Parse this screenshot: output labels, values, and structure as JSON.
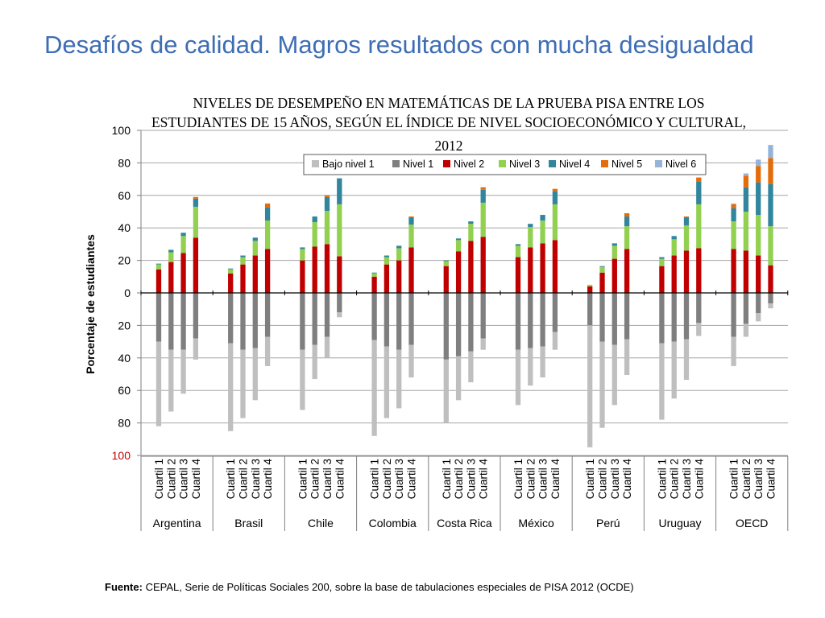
{
  "slide": {
    "title": "Desafíos de calidad. Magros resultados con mucha desigualdad",
    "footer_label": "Fuente:",
    "footer_text": "CEPAL, Serie de Políticas Sociales  200, sobre la base de tabulaciones especiales de PISA 2012 (OCDE)"
  },
  "chart_data": {
    "type": "bar",
    "stacked": true,
    "diverging": true,
    "title_lines": [
      "NIVELES DE DESEMPEÑO EN MATEMÁTICAS DE LA PRUEBA PISA ENTRE LOS",
      "ESTUDIANTES DE 15 AÑOS, SEGÚN EL ÍNDICE DE NIVEL SOCIOECONÓMICO Y CULTURAL,",
      "2012"
    ],
    "ylabel": "Porcentaje de estudiantes",
    "ylim": [
      -100,
      100
    ],
    "yticks": [
      {
        "value": 100,
        "label": "100"
      },
      {
        "value": 80,
        "label": "80"
      },
      {
        "value": 60,
        "label": "60"
      },
      {
        "value": 40,
        "label": "40"
      },
      {
        "value": 20,
        "label": "20"
      },
      {
        "value": 0,
        "label": "0"
      },
      {
        "value": -20,
        "label": "20"
      },
      {
        "value": -40,
        "label": "40"
      },
      {
        "value": -60,
        "label": "60"
      },
      {
        "value": -80,
        "label": "80"
      },
      {
        "value": -100,
        "label": "100"
      }
    ],
    "y_tick_color_negative_extreme": "#c00000",
    "grid": true,
    "legend_position": "top",
    "series": [
      {
        "name": "Bajo nivel 1",
        "color": "#bfbfbf",
        "direction": "below"
      },
      {
        "name": "Nivel 1",
        "color": "#7f7f7f",
        "direction": "below"
      },
      {
        "name": "Nivel 2",
        "color": "#c00000",
        "direction": "above"
      },
      {
        "name": "Nivel 3",
        "color": "#92d050",
        "direction": "above"
      },
      {
        "name": "Nivel 4",
        "color": "#31859c",
        "direction": "above"
      },
      {
        "name": "Nivel 5",
        "color": "#e46c0a",
        "direction": "above"
      },
      {
        "name": "Nivel 6",
        "color": "#95b3d7",
        "direction": "above"
      }
    ],
    "quartile_labels": [
      "Cuartil 1",
      "Cuartil 2",
      "Cuartil 3",
      "Cuartil 4"
    ],
    "groups": [
      {
        "name": "Argentina",
        "bars": [
          {
            "Bajo nivel 1": 52,
            "Nivel 1": 30,
            "Nivel 2": 14.5,
            "Nivel 3": 3,
            "Nivel 4": 0.5,
            "Nivel 5": 0,
            "Nivel 6": 0
          },
          {
            "Bajo nivel 1": 38,
            "Nivel 1": 35,
            "Nivel 2": 19,
            "Nivel 3": 6,
            "Nivel 4": 1.5,
            "Nivel 5": 0,
            "Nivel 6": 0
          },
          {
            "Bajo nivel 1": 27,
            "Nivel 1": 35,
            "Nivel 2": 24.5,
            "Nivel 3": 10.5,
            "Nivel 4": 2,
            "Nivel 5": 0,
            "Nivel 6": 0
          },
          {
            "Bajo nivel 1": 13,
            "Nivel 1": 28,
            "Nivel 2": 34,
            "Nivel 3": 19,
            "Nivel 4": 5,
            "Nivel 5": 1,
            "Nivel 6": 0
          }
        ]
      },
      {
        "name": "Brasil",
        "bars": [
          {
            "Bajo nivel 1": 54,
            "Nivel 1": 31,
            "Nivel 2": 12,
            "Nivel 3": 2.5,
            "Nivel 4": 0.5,
            "Nivel 5": 0,
            "Nivel 6": 0
          },
          {
            "Bajo nivel 1": 42,
            "Nivel 1": 35,
            "Nivel 2": 17.5,
            "Nivel 3": 4.5,
            "Nivel 4": 1,
            "Nivel 5": 0,
            "Nivel 6": 0
          },
          {
            "Bajo nivel 1": 32,
            "Nivel 1": 34,
            "Nivel 2": 23,
            "Nivel 3": 9,
            "Nivel 4": 2,
            "Nivel 5": 0,
            "Nivel 6": 0
          },
          {
            "Bajo nivel 1": 18,
            "Nivel 1": 27,
            "Nivel 2": 27,
            "Nivel 3": 17.5,
            "Nivel 4": 8,
            "Nivel 5": 2.5,
            "Nivel 6": 0
          }
        ]
      },
      {
        "name": "Chile",
        "bars": [
          {
            "Bajo nivel 1": 37,
            "Nivel 1": 35,
            "Nivel 2": 20,
            "Nivel 3": 7,
            "Nivel 4": 1,
            "Nivel 5": 0,
            "Nivel 6": 0
          },
          {
            "Bajo nivel 1": 21,
            "Nivel 1": 32,
            "Nivel 2": 28.5,
            "Nivel 3": 15,
            "Nivel 4": 3.5,
            "Nivel 5": 0,
            "Nivel 6": 0
          },
          {
            "Bajo nivel 1": 13,
            "Nivel 1": 27,
            "Nivel 2": 30,
            "Nivel 3": 20.5,
            "Nivel 4": 8.5,
            "Nivel 5": 1,
            "Nivel 6": 0
          },
          {
            "Bajo nivel 1": 3,
            "Nivel 1": 12,
            "Nivel 2": 22.5,
            "Nivel 3": 32,
            "Nivel 4": 16,
            "Nivel 5": 0,
            "Nivel 6": 0
          }
        ]
      },
      {
        "name": "Colombia",
        "bars": [
          {
            "Bajo nivel 1": 59,
            "Nivel 1": 29,
            "Nivel 2": 10,
            "Nivel 3": 2,
            "Nivel 4": 0.5,
            "Nivel 5": 0,
            "Nivel 6": 0
          },
          {
            "Bajo nivel 1": 44,
            "Nivel 1": 33,
            "Nivel 2": 17.5,
            "Nivel 3": 4.5,
            "Nivel 4": 1,
            "Nivel 5": 0,
            "Nivel 6": 0
          },
          {
            "Bajo nivel 1": 36,
            "Nivel 1": 35,
            "Nivel 2": 20,
            "Nivel 3": 7.5,
            "Nivel 4": 1.5,
            "Nivel 5": 0,
            "Nivel 6": 0
          },
          {
            "Bajo nivel 1": 20,
            "Nivel 1": 32,
            "Nivel 2": 28,
            "Nivel 3": 14,
            "Nivel 4": 4.5,
            "Nivel 5": 0.5,
            "Nivel 6": 0
          }
        ]
      },
      {
        "name": "Costa Rica",
        "bars": [
          {
            "Bajo nivel 1": 39,
            "Nivel 1": 41,
            "Nivel 2": 16.5,
            "Nivel 3": 3,
            "Nivel 4": 0.5,
            "Nivel 5": 0,
            "Nivel 6": 0
          },
          {
            "Bajo nivel 1": 27,
            "Nivel 1": 39,
            "Nivel 2": 25.5,
            "Nivel 3": 7,
            "Nivel 4": 1,
            "Nivel 5": 0,
            "Nivel 6": 0
          },
          {
            "Bajo nivel 1": 19,
            "Nivel 1": 36,
            "Nivel 2": 32,
            "Nivel 3": 10.5,
            "Nivel 4": 1.5,
            "Nivel 5": 0,
            "Nivel 6": 0
          },
          {
            "Bajo nivel 1": 7,
            "Nivel 1": 28,
            "Nivel 2": 34.5,
            "Nivel 3": 21,
            "Nivel 4": 8,
            "Nivel 5": 1.5,
            "Nivel 6": 0
          }
        ]
      },
      {
        "name": "México",
        "bars": [
          {
            "Bajo nivel 1": 34,
            "Nivel 1": 35,
            "Nivel 2": 22,
            "Nivel 3": 7,
            "Nivel 4": 1,
            "Nivel 5": 0,
            "Nivel 6": 0
          },
          {
            "Bajo nivel 1": 23,
            "Nivel 1": 34,
            "Nivel 2": 28,
            "Nivel 3": 12.5,
            "Nivel 4": 2,
            "Nivel 5": 0,
            "Nivel 6": 0
          },
          {
            "Bajo nivel 1": 19,
            "Nivel 1": 33,
            "Nivel 2": 30.5,
            "Nivel 3": 14,
            "Nivel 4": 3.5,
            "Nivel 5": 0,
            "Nivel 6": 0
          },
          {
            "Bajo nivel 1": 11,
            "Nivel 1": 24,
            "Nivel 2": 32.5,
            "Nivel 3": 22,
            "Nivel 4": 8,
            "Nivel 5": 1.5,
            "Nivel 6": 0
          }
        ]
      },
      {
        "name": "Perú",
        "bars": [
          {
            "Bajo nivel 1": 75,
            "Nivel 1": 20,
            "Nivel 2": 4,
            "Nivel 3": 1,
            "Nivel 4": 0,
            "Nivel 5": 0,
            "Nivel 6": 0
          },
          {
            "Bajo nivel 1": 53,
            "Nivel 1": 30,
            "Nivel 2": 12.5,
            "Nivel 3": 3.5,
            "Nivel 4": 0.5,
            "Nivel 5": 0,
            "Nivel 6": 0
          },
          {
            "Bajo nivel 1": 37,
            "Nivel 1": 32,
            "Nivel 2": 21,
            "Nivel 3": 8,
            "Nivel 4": 1.5,
            "Nivel 5": 0,
            "Nivel 6": 0
          },
          {
            "Bajo nivel 1": 22,
            "Nivel 1": 28.5,
            "Nivel 2": 27,
            "Nivel 3": 14,
            "Nivel 4": 6,
            "Nivel 5": 2,
            "Nivel 6": 0
          }
        ]
      },
      {
        "name": "Uruguay",
        "bars": [
          {
            "Bajo nivel 1": 47,
            "Nivel 1": 31,
            "Nivel 2": 16.5,
            "Nivel 3": 4.5,
            "Nivel 4": 1,
            "Nivel 5": 0,
            "Nivel 6": 0
          },
          {
            "Bajo nivel 1": 35,
            "Nivel 1": 30,
            "Nivel 2": 23,
            "Nivel 3": 10,
            "Nivel 4": 2,
            "Nivel 5": 0,
            "Nivel 6": 0
          },
          {
            "Bajo nivel 1": 25,
            "Nivel 1": 28.5,
            "Nivel 2": 26,
            "Nivel 3": 15.5,
            "Nivel 4": 5,
            "Nivel 5": 0.5,
            "Nivel 6": 0
          },
          {
            "Bajo nivel 1": 8,
            "Nivel 1": 18.5,
            "Nivel 2": 27.5,
            "Nivel 3": 27,
            "Nivel 4": 14,
            "Nivel 5": 2.5,
            "Nivel 6": 0
          }
        ]
      },
      {
        "name": "OECD",
        "bars": [
          {
            "Bajo nivel 1": 18,
            "Nivel 1": 27,
            "Nivel 2": 27,
            "Nivel 3": 17,
            "Nivel 4": 8,
            "Nivel 5": 2.5,
            "Nivel 6": 0.5
          },
          {
            "Bajo nivel 1": 8,
            "Nivel 1": 19,
            "Nivel 2": 26,
            "Nivel 3": 24,
            "Nivel 4": 15,
            "Nivel 5": 7,
            "Nivel 6": 1.5
          },
          {
            "Bajo nivel 1": 5,
            "Nivel 1": 12.5,
            "Nivel 2": 23,
            "Nivel 3": 25,
            "Nivel 4": 20,
            "Nivel 5": 10,
            "Nivel 6": 4
          },
          {
            "Bajo nivel 1": 3,
            "Nivel 1": 6.5,
            "Nivel 2": 17,
            "Nivel 3": 24,
            "Nivel 4": 26,
            "Nivel 5": 16,
            "Nivel 6": 8
          }
        ]
      }
    ]
  }
}
